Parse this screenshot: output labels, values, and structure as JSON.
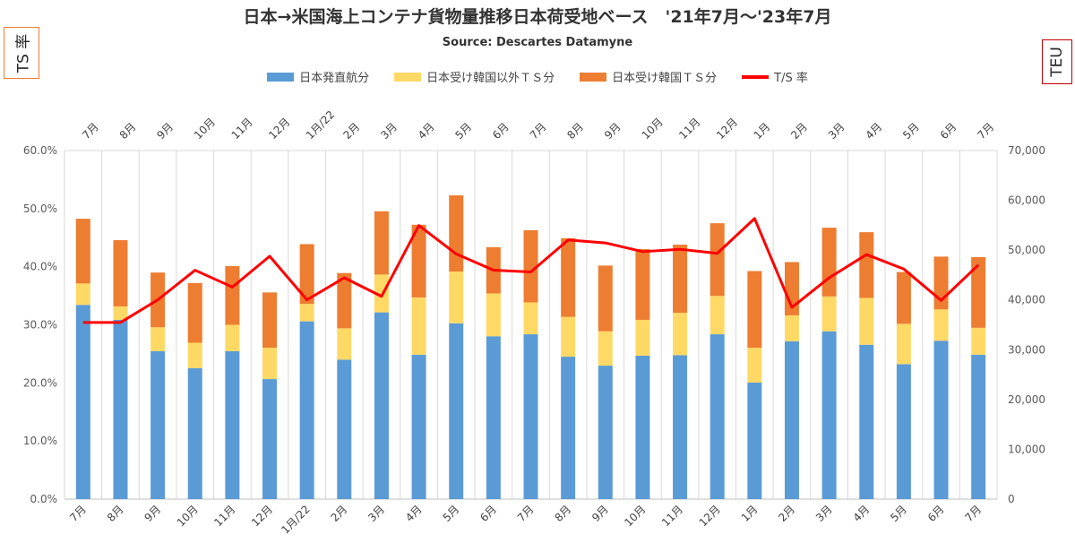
{
  "title": "日本→米国海上コンテナ貨物量推移日本荷受地ベース　'21年7月～'23年7月",
  "subtitle": "Source: Descartes Datamyne",
  "left_axis_box": "TS 率",
  "right_axis_box": "TEU",
  "colors": {
    "direct": "#5b9bd5",
    "korea_other": "#ffd966",
    "korea_ts": "#ed7d31",
    "ts_rate": "#ff0000",
    "grid": "#d9d9d9"
  },
  "chart_data": {
    "type": "bar",
    "stacked": true,
    "categories_bottom": [
      "7月",
      "8月",
      "9月",
      "10月",
      "11月",
      "12月",
      "1月/22",
      "2月",
      "3月",
      "4月",
      "5月",
      "6月",
      "7月",
      "8月",
      "9月",
      "10月",
      "11月",
      "12月",
      "1月",
      "2月",
      "3月",
      "4月",
      "5月",
      "6月",
      "7月"
    ],
    "categories_top": [
      "7月",
      "8月",
      "9月",
      "10月",
      "11月",
      "12月",
      "1月/22",
      "2月",
      "3月",
      "4月",
      "5月",
      "6月",
      "7月",
      "8月",
      "9月",
      "10月",
      "11月",
      "12月",
      "1月",
      "2月",
      "3月",
      "4月",
      "5月",
      "6月",
      "7月"
    ],
    "series": [
      {
        "name": "日本発直航分",
        "axis": "right",
        "values": [
          39000,
          36000,
          29700,
          26300,
          29700,
          24100,
          35700,
          28000,
          37500,
          29000,
          35300,
          32700,
          33100,
          28600,
          26800,
          28800,
          28900,
          33100,
          23400,
          31700,
          33700,
          31000,
          27100,
          31800,
          29000
        ]
      },
      {
        "name": "日本受け韓国以外ＴＳ分",
        "axis": "right",
        "values": [
          4300,
          2700,
          4800,
          5100,
          5300,
          6300,
          3500,
          6300,
          7600,
          11500,
          10400,
          8600,
          6400,
          8000,
          6900,
          7200,
          8500,
          7700,
          7000,
          5200,
          7000,
          9400,
          8100,
          6300,
          5400
        ]
      },
      {
        "name": "日本受け韓国ＴＳ分",
        "axis": "right",
        "values": [
          13000,
          13300,
          11000,
          12000,
          11800,
          11100,
          12000,
          11100,
          12700,
          14600,
          15300,
          9300,
          14500,
          15800,
          13200,
          14200,
          13700,
          14600,
          15400,
          10700,
          13800,
          13200,
          10400,
          10600,
          14200
        ]
      },
      {
        "name": "T/S 率",
        "type": "line",
        "axis": "left",
        "values": [
          30.4,
          30.4,
          34.3,
          39.4,
          36.5,
          41.8,
          34.3,
          38.1,
          34.9,
          47.1,
          42.2,
          39.4,
          39.1,
          44.6,
          44.1,
          42.6,
          43.0,
          42.3,
          48.3,
          33.0,
          38.1,
          42.1,
          39.6,
          34.2,
          40.3
        ]
      }
    ],
    "left_axis": {
      "min": 0,
      "max": 60,
      "ticks": [
        "0.0%",
        "10.0%",
        "20.0%",
        "30.0%",
        "40.0%",
        "50.0%",
        "60.0%"
      ]
    },
    "right_axis": {
      "min": 0,
      "max": 70000,
      "ticks": [
        "0",
        "10,000",
        "20,000",
        "30,000",
        "40,000",
        "50,000",
        "60,000",
        "70,000"
      ]
    },
    "grid": "vertical-category-lines",
    "legend_position": "top"
  }
}
